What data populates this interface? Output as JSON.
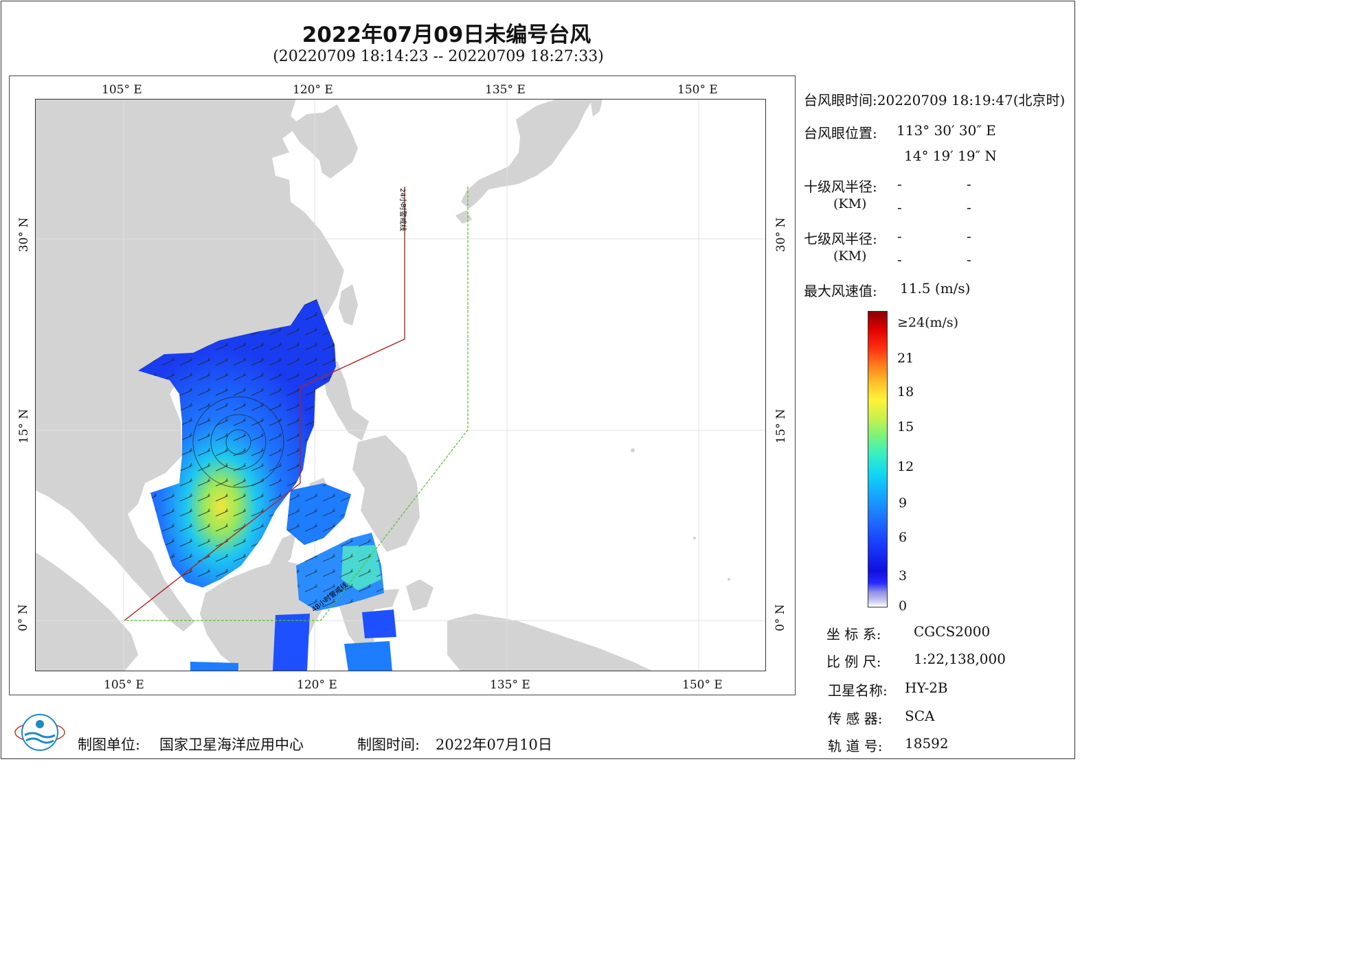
{
  "header": {
    "title": "2022年07月09日未编号台风",
    "subtitle": "(20220709 18:14:23 -- 20220709 18:27:33)"
  },
  "map": {
    "top_lon_labels": [
      "105° E",
      "120° E",
      "135° E",
      "150° E"
    ],
    "bottom_lon_labels": [
      "105° E",
      "120° E",
      "135° E",
      "150° E"
    ],
    "left_lat_labels": [
      "30° N",
      "15° N",
      "0° N"
    ],
    "right_lat_labels": [
      "30° N",
      "15° N",
      "0° N"
    ],
    "line_label_24h": "24小时警戒线",
    "line_label_48h": "48小时警戒线",
    "colors": {
      "land": "#d3d3d3",
      "sea": "#ffffff",
      "warning24": "#b22222",
      "warning48": "#55c02a",
      "grid": "#e2e2e2"
    }
  },
  "info": {
    "eye_time_label": "台风眼时间:",
    "eye_time_value": "20220709 18:19:47(北京时)",
    "eye_pos_label": "台风眼位置:",
    "eye_lon": "113° 30′ 30″ E",
    "eye_lat": "14° 19′ 19″ N",
    "r10_label": "十级风半径:",
    "r10_unit": "(KM)",
    "r10_values": [
      "-",
      "-",
      "-",
      "-"
    ],
    "r7_label": "七级风半径:",
    "r7_unit": "(KM)",
    "r7_values": [
      "-",
      "-",
      "-",
      "-"
    ],
    "max_wind_label": "最大风速值:",
    "max_wind_value": "11.5 (m/s)"
  },
  "colorbar": {
    "labels": [
      "≥24(m/s)",
      "21",
      "18",
      "15",
      "12",
      "9",
      "6",
      "3",
      "0"
    ]
  },
  "meta": {
    "coord_label": "坐 标 系:",
    "coord_value": "CGCS2000",
    "scale_label": "比 例 尺:",
    "scale_value": "1:22,138,000",
    "satellite_label": "卫星名称:",
    "satellite_value": "HY-2B",
    "sensor_label": "传 感 器:",
    "sensor_value": "SCA",
    "orbit_label": "轨 道 号:",
    "orbit_value": "18592"
  },
  "footer": {
    "org_label": "制图单位:",
    "org_value": "国家卫星海洋应用中心",
    "date_label": "制图时间:",
    "date_value": "2022年07月10日"
  }
}
